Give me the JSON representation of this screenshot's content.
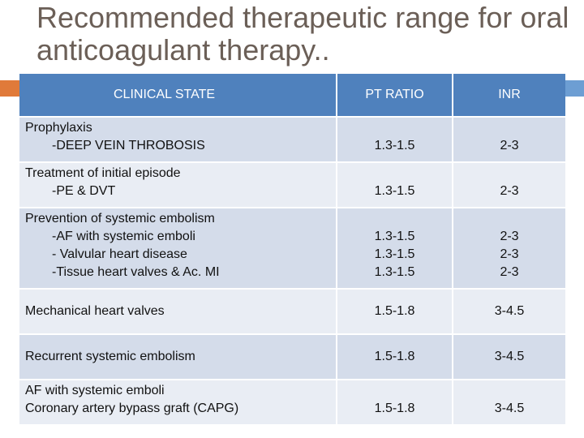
{
  "slide": {
    "title": "Recommended therapeutic range for oral anticoagulant therapy.."
  },
  "table": {
    "headers": {
      "state": "CLINICAL STATE",
      "pt": "PT RATIO",
      "inr": "INR"
    },
    "rows": [
      {
        "state_main": "Prophylaxis",
        "state_sub": [
          "-DEEP VEIN THROBOSIS"
        ],
        "pt": [
          "1.3-1.5"
        ],
        "inr": [
          "2-3"
        ]
      },
      {
        "state_main": "Treatment of initial episode",
        "state_sub": [
          "-PE & DVT"
        ],
        "pt": [
          "1.3-1.5"
        ],
        "inr": [
          "2-3"
        ]
      },
      {
        "state_main": "Prevention of systemic embolism",
        "state_sub": [
          "-AF with systemic emboli",
          "- Valvular heart disease",
          "-Tissue heart valves & Ac. MI"
        ],
        "pt": [
          "1.3-1.5",
          "1.3-1.5",
          "1.3-1.5"
        ],
        "inr": [
          "2-3",
          "2-3",
          "2-3"
        ]
      },
      {
        "state_main": "Mechanical heart valves",
        "state_sub": [],
        "pt": [
          "1.5-1.8"
        ],
        "inr": [
          "3-4.5"
        ]
      },
      {
        "state_main": "Recurrent systemic embolism",
        "state_sub": [],
        "pt": [
          "1.5-1.8"
        ],
        "inr": [
          "3-4.5"
        ]
      },
      {
        "state_main": "AF with systemic emboli",
        "state_sub": [
          "Coronary artery bypass graft (CAPG)"
        ],
        "pt": [
          "1.5-1.8"
        ],
        "inr": [
          "3-4.5"
        ]
      }
    ]
  }
}
